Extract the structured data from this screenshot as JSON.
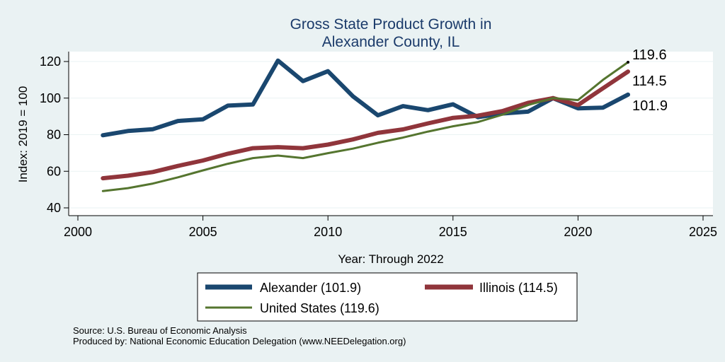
{
  "chart_data": {
    "type": "line",
    "title": [
      "Gross State Product Growth in",
      "Alexander County, IL"
    ],
    "xlabel": "Year: Through 2022",
    "ylabel": "Index: 2019 = 100",
    "xlim": [
      2000,
      2025
    ],
    "ylim": [
      40,
      120
    ],
    "xticks": [
      2000,
      2005,
      2010,
      2015,
      2020,
      2025
    ],
    "yticks": [
      40,
      60,
      80,
      100,
      120
    ],
    "grid": "horizontal",
    "x": [
      2001,
      2002,
      2003,
      2004,
      2005,
      2006,
      2007,
      2008,
      2009,
      2010,
      2011,
      2012,
      2013,
      2014,
      2015,
      2016,
      2017,
      2018,
      2019,
      2020,
      2021,
      2022
    ],
    "series": [
      {
        "name": "Alexander",
        "legend_label": "Alexander  (101.9)",
        "end_label": "101.9",
        "color": "#1a476f",
        "width": "thick",
        "values": [
          79.7,
          82.0,
          83.0,
          87.5,
          88.4,
          95.9,
          96.5,
          120.5,
          109.3,
          114.7,
          101.0,
          90.6,
          95.6,
          93.4,
          96.6,
          89.6,
          91.6,
          92.6,
          100.0,
          94.4,
          94.8,
          101.9
        ]
      },
      {
        "name": "Illinois",
        "legend_label": "Illinois (114.5)",
        "end_label": "114.5",
        "color": "#90353b",
        "width": "thick",
        "values": [
          56.2,
          57.6,
          59.6,
          62.9,
          65.9,
          69.6,
          72.6,
          73.2,
          72.6,
          74.6,
          77.4,
          81.0,
          82.9,
          86.2,
          89.2,
          90.4,
          93.0,
          97.4,
          100.0,
          96.2,
          105.4,
          114.5
        ]
      },
      {
        "name": "United States",
        "legend_label": "United States (119.6)",
        "end_label": "119.6",
        "color": "#55752f",
        "width": "thin",
        "values": [
          49.2,
          50.8,
          53.3,
          56.7,
          60.5,
          64.1,
          67.2,
          68.6,
          67.2,
          69.9,
          72.4,
          75.6,
          78.4,
          81.7,
          84.6,
          86.9,
          91.0,
          96.2,
          100.0,
          98.9,
          110.0,
          119.6
        ]
      }
    ],
    "legend_position": "bottom"
  },
  "notes": [
    "Source: U.S. Bureau of Economic Analysis",
    "Produced by: National Economic Education Delegation (www.NEEDelegation.org)"
  ]
}
